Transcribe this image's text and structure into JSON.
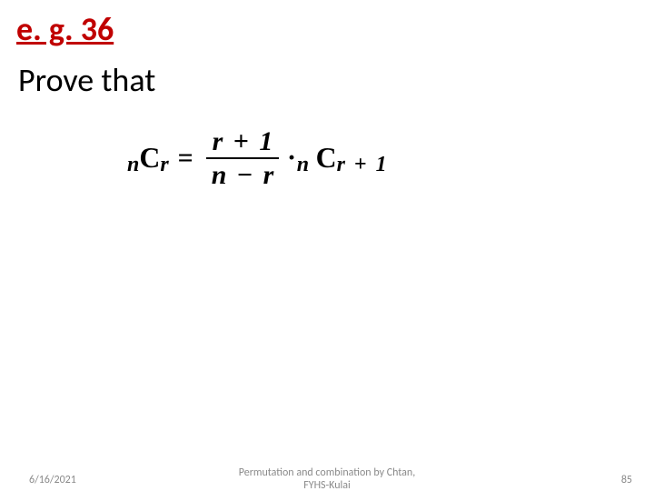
{
  "heading": {
    "text": "e. g. 36",
    "color": "#c00000",
    "fontsize_pt": 28
  },
  "subtext": {
    "text": "Prove that",
    "color": "#000000",
    "fontsize_pt": 28
  },
  "formula": {
    "left": {
      "pre_sub": "n",
      "sym": "C",
      "post_sub": "r"
    },
    "eq": "=",
    "frac": {
      "num_l": "r",
      "num_op": "+",
      "num_r": "1",
      "den_l": "n",
      "den_op": "−",
      "den_r": "r"
    },
    "dot": "∙",
    "right": {
      "pre_sub": "n",
      "sym": "C",
      "post_sub_l": "r",
      "post_sub_op": "+",
      "post_sub_r": "1"
    },
    "color": "#000000",
    "fontsize_pt": 22
  },
  "footer": {
    "date": "6/16/2021",
    "center_line1": "Permutation and combination by Chtan,",
    "center_line2": "FYHS-Kulai",
    "page": "85",
    "color": "#8a8a8a",
    "fontsize_pt": 9
  },
  "background_color": "#ffffff"
}
